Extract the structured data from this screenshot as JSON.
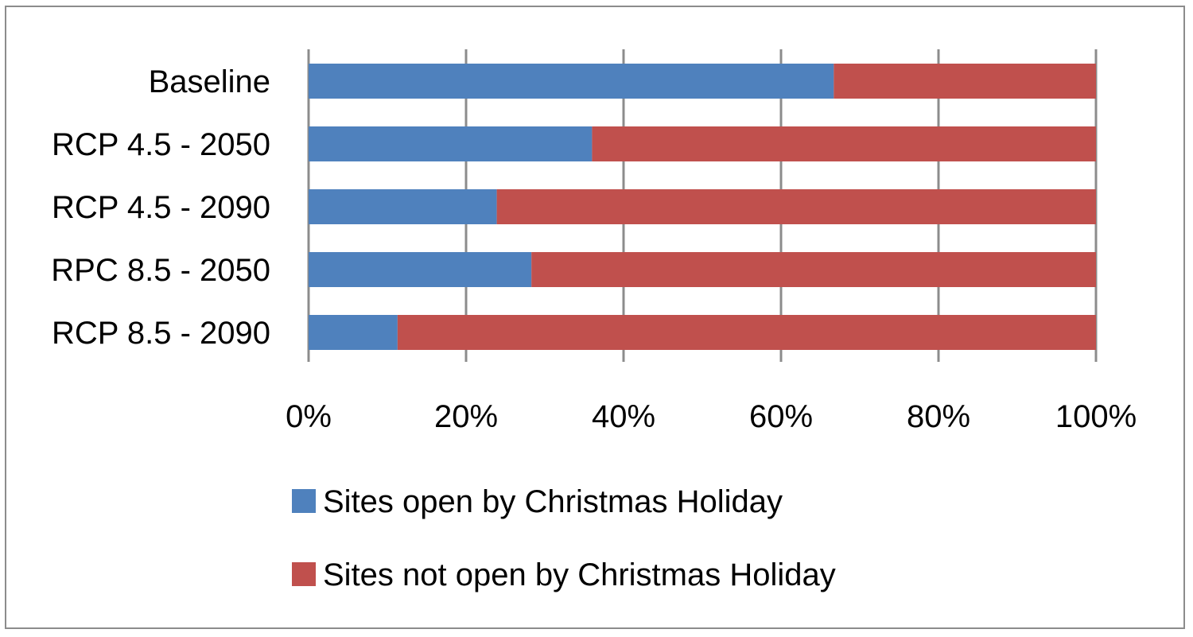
{
  "chart_data": {
    "type": "bar",
    "orientation": "horizontal",
    "stacking": "percent",
    "categories": [
      "Baseline",
      "RCP 4.5 - 2050",
      "RCP 4.5 - 2090",
      "RPC 8.5 - 2050",
      "RCP 8.5 - 2090"
    ],
    "series": [
      {
        "name": "Sites open by Christmas Holiday",
        "color": "#4f81bd",
        "values": [
          66.7,
          36.0,
          23.9,
          28.3,
          11.3
        ]
      },
      {
        "name": "Sites not open by Christmas Holiday",
        "color": "#c0504d",
        "values": [
          33.3,
          64.0,
          76.1,
          71.7,
          88.7
        ]
      }
    ],
    "xlim": [
      0,
      100
    ],
    "x_ticks": [
      "0%",
      "20%",
      "40%",
      "60%",
      "80%",
      "100%"
    ],
    "title": "",
    "xlabel": "",
    "ylabel": "",
    "grid": "vertical gridlines",
    "grid_color": "#8c8c8c",
    "legend_position": "bottom"
  }
}
